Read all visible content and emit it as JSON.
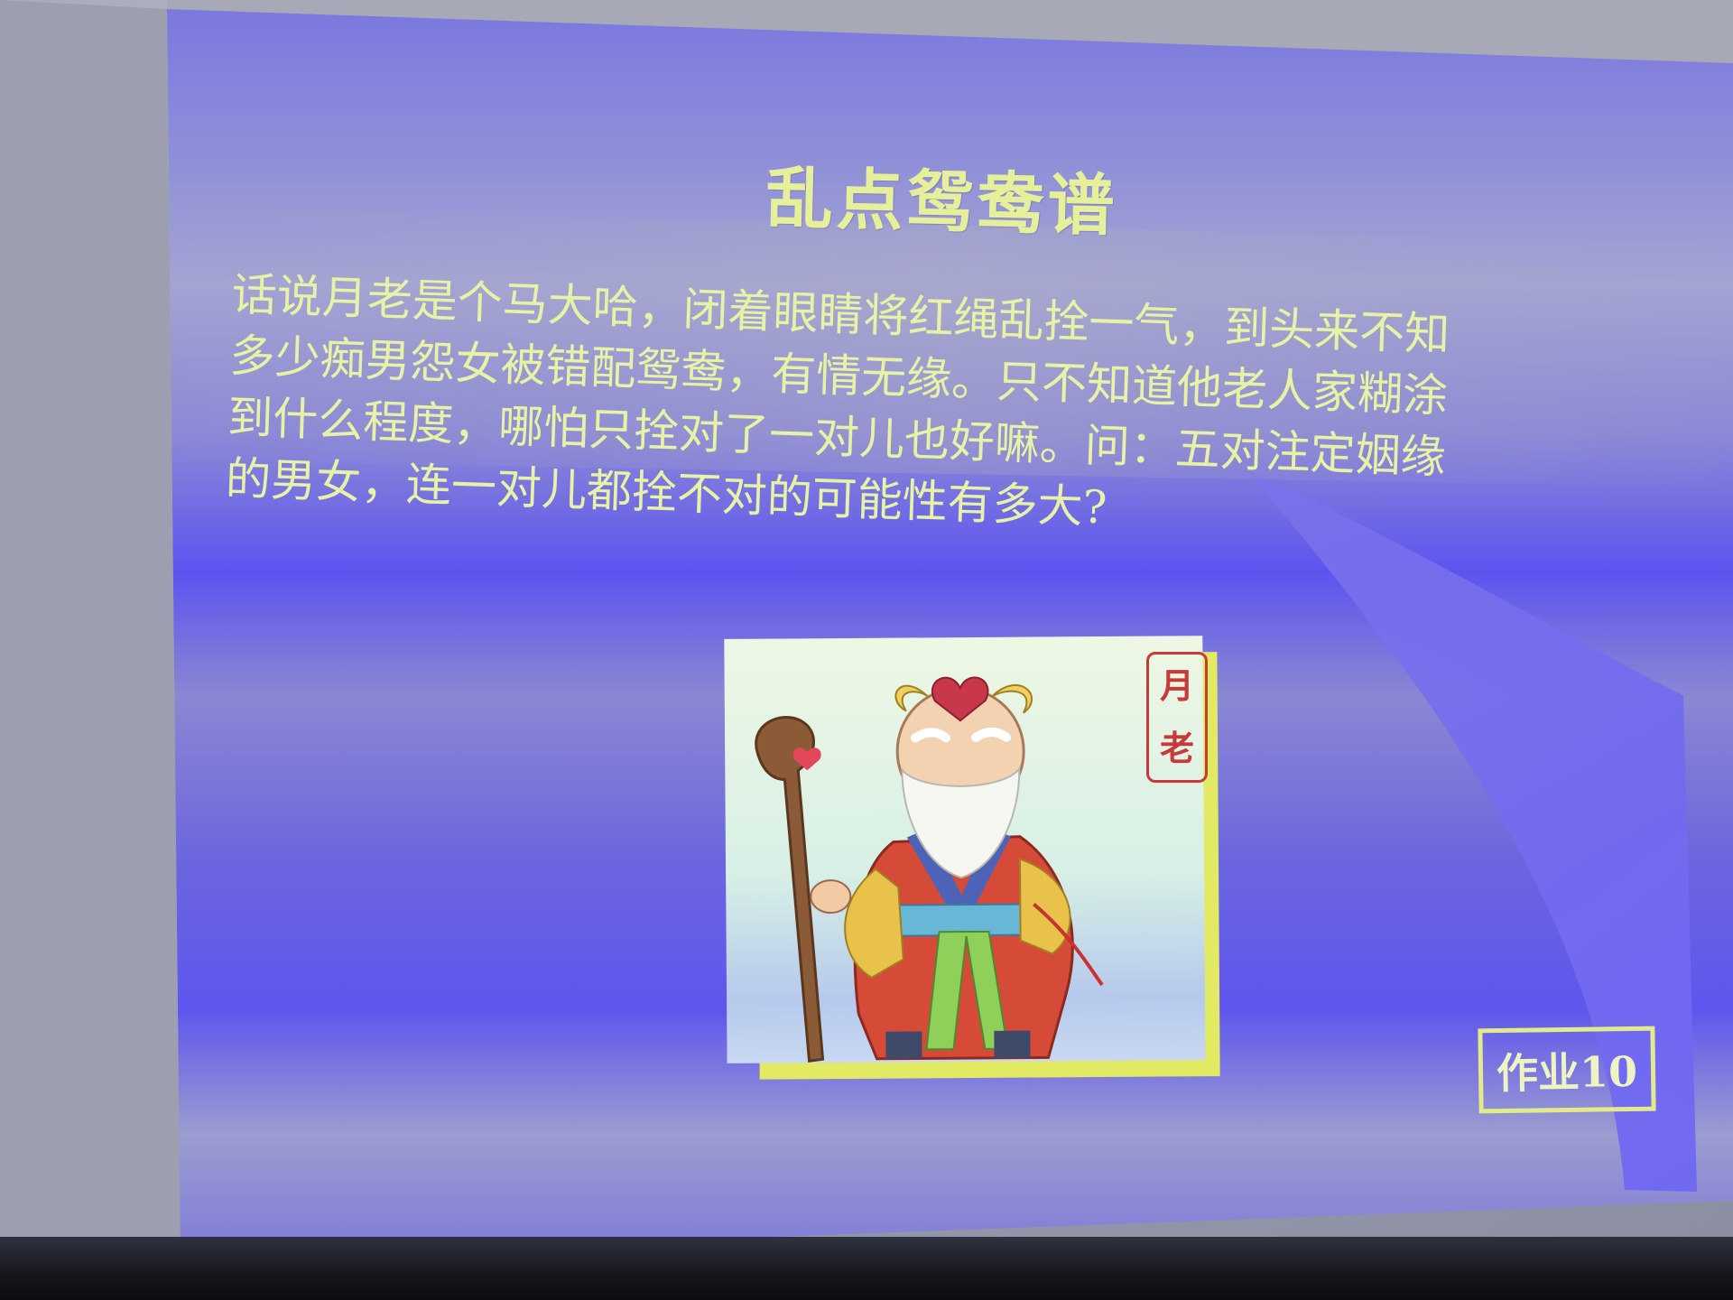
{
  "slide": {
    "title": "乱点鸳鸯谱",
    "body_lines": [
      "话说月老是个马大哈，闭着眼睛将红绳乱拴一气，到头来不知",
      "多少痴男怨女被错配鸳鸯，有情无缘。只不知道他老人家糊涂",
      "到什么程度，哪怕只拴对了一对儿也好嘛。问：五对注定姻缘",
      "的男女，连一对儿都拴不对的可能性有多大?"
    ],
    "seal_chars": [
      "月",
      "老"
    ],
    "homework_label": "作业10"
  },
  "colors": {
    "slide_blue": "#6f67e8",
    "text_yellow": "#e7f2a6",
    "frame_yellow": "#e3ea8a",
    "seal_red": "#c73a3a"
  }
}
